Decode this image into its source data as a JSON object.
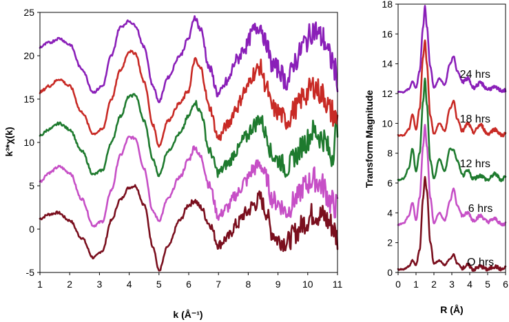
{
  "chart_data": [
    {
      "type": "line",
      "xlabel": "k (Å⁻¹)",
      "ylabel": "k³*χ(k)",
      "xlim": [
        1,
        11
      ],
      "ylim": [
        -5,
        25
      ],
      "xticks": [
        "1",
        "2",
        "3",
        "4",
        "5",
        "6",
        "7",
        "8",
        "9",
        "10",
        "11"
      ],
      "yticks": [
        "-5",
        "0",
        "5",
        "10",
        "15",
        "20",
        "25"
      ],
      "grid": false,
      "series": [
        {
          "color": "#7a0f1e",
          "x": [
            1,
            1.3,
            1.6,
            2.0,
            2.4,
            2.8,
            3.1,
            3.4,
            3.7,
            4.0,
            4.2,
            4.5,
            4.8,
            5.0,
            5.3,
            5.7,
            6.0,
            6.2,
            6.4,
            6.7,
            7.0,
            7.3,
            7.6,
            7.9,
            8.2,
            8.4,
            8.6,
            8.8,
            9.0,
            9.3,
            9.6,
            9.9,
            10.2,
            10.5,
            10.8,
            11
          ],
          "y": [
            1.2,
            1.7,
            1.9,
            1.0,
            -1.0,
            -3.3,
            -2.5,
            1.0,
            3.4,
            4.8,
            5.0,
            2.8,
            -2.0,
            -4.8,
            -2.0,
            1.0,
            2.8,
            3.3,
            2.5,
            0.6,
            -1.8,
            -1.0,
            0.5,
            1.8,
            2.8,
            3.6,
            2.0,
            -0.4,
            -1.2,
            -1.5,
            -0.4,
            0.8,
            1.8,
            1.5,
            0.5,
            -1.0
          ]
        },
        {
          "color": "#c64fc6",
          "x": [
            1,
            1.3,
            1.65,
            2.0,
            2.4,
            2.8,
            3.1,
            3.4,
            3.7,
            4.0,
            4.2,
            4.5,
            4.8,
            5.0,
            5.3,
            5.7,
            6.0,
            6.2,
            6.4,
            6.7,
            7.0,
            7.3,
            7.6,
            7.9,
            8.2,
            8.4,
            8.6,
            8.8,
            9.0,
            9.3,
            9.6,
            9.9,
            10.2,
            10.5,
            10.8,
            11
          ],
          "y": [
            5.5,
            6.5,
            7.2,
            6.5,
            3.5,
            0.4,
            0.9,
            4.5,
            8.5,
            10.6,
            10.5,
            7.0,
            2.0,
            1.0,
            3.5,
            6.0,
            8.0,
            9.5,
            8.3,
            5.0,
            1.5,
            2.5,
            4.0,
            5.5,
            7.0,
            7.5,
            6.0,
            3.5,
            3.0,
            2.0,
            3.5,
            5.0,
            5.8,
            5.0,
            3.0,
            2.5
          ]
        },
        {
          "color": "#1e7a2e",
          "x": [
            1,
            1.3,
            1.65,
            2.0,
            2.4,
            2.8,
            3.1,
            3.4,
            3.7,
            4.0,
            4.2,
            4.5,
            4.8,
            5.0,
            5.3,
            5.7,
            6.0,
            6.2,
            6.4,
            6.7,
            7.0,
            7.3,
            7.6,
            7.9,
            8.2,
            8.4,
            8.6,
            8.8,
            9.0,
            9.3,
            9.6,
            9.9,
            10.2,
            10.5,
            10.8,
            11
          ],
          "y": [
            10.8,
            11.5,
            12.2,
            11.5,
            9.0,
            6.3,
            6.8,
            10.0,
            13.0,
            15.3,
            15.5,
            12.5,
            8.0,
            6.2,
            9.0,
            11.0,
            13.0,
            14.7,
            13.5,
            9.0,
            6.5,
            7.5,
            9.0,
            10.5,
            12.0,
            12.8,
            11.0,
            8.5,
            8.0,
            7.0,
            8.5,
            10.0,
            11.3,
            10.5,
            8.5,
            12.0
          ]
        },
        {
          "color": "#c82a25",
          "x": [
            1,
            1.3,
            1.65,
            2.0,
            2.4,
            2.8,
            3.1,
            3.4,
            3.7,
            4.0,
            4.2,
            4.5,
            4.8,
            5.0,
            5.3,
            5.7,
            6.0,
            6.2,
            6.4,
            6.7,
            7.0,
            7.3,
            7.6,
            7.9,
            8.2,
            8.4,
            8.6,
            8.8,
            9.0,
            9.3,
            9.6,
            9.9,
            10.2,
            10.5,
            10.8,
            11
          ],
          "y": [
            15.8,
            16.5,
            17.3,
            16.5,
            13.5,
            11.0,
            11.5,
            15.0,
            18.3,
            20.5,
            20.3,
            17.0,
            12.0,
            9.6,
            12.5,
            14.5,
            16.0,
            19.5,
            18.5,
            14.0,
            10.5,
            12.0,
            14.0,
            16.0,
            18.0,
            18.7,
            16.5,
            14.0,
            13.5,
            12.5,
            14.0,
            15.5,
            16.5,
            15.5,
            13.5,
            12.5
          ]
        },
        {
          "color": "#8a1fb8",
          "x": [
            1,
            1.3,
            1.65,
            2.0,
            2.4,
            2.8,
            3.1,
            3.4,
            3.7,
            4.0,
            4.2,
            4.5,
            4.8,
            5.0,
            5.3,
            5.7,
            6.0,
            6.2,
            6.4,
            6.7,
            7.0,
            7.3,
            7.6,
            7.9,
            8.2,
            8.4,
            8.6,
            8.8,
            9.0,
            9.3,
            9.6,
            9.9,
            10.2,
            10.5,
            10.8,
            11
          ],
          "y": [
            21.0,
            21.5,
            22.0,
            21.3,
            18.5,
            15.8,
            16.5,
            20.0,
            23.3,
            24.0,
            23.5,
            21.0,
            16.5,
            14.7,
            17.5,
            20.0,
            22.0,
            24.5,
            23.0,
            18.5,
            15.5,
            17.0,
            19.5,
            21.0,
            23.0,
            23.5,
            21.5,
            19.0,
            18.5,
            17.0,
            19.5,
            21.5,
            23.0,
            22.0,
            19.5,
            17.5
          ]
        }
      ]
    },
    {
      "type": "line",
      "xlabel": "R (Å)",
      "ylabel": "Transform Magnitude",
      "xlim": [
        0,
        6
      ],
      "ylim": [
        0,
        18
      ],
      "xticks": [
        "0",
        "1",
        "2",
        "3",
        "4",
        "5",
        "6"
      ],
      "yticks": [
        "0",
        "2",
        "4",
        "6",
        "8",
        "10",
        "12",
        "14",
        "16",
        "18"
      ],
      "grid": false,
      "series": [
        {
          "name": "O hrs",
          "color": "#7a0f1e",
          "x": [
            0,
            0.3,
            0.6,
            0.8,
            1.0,
            1.2,
            1.4,
            1.5,
            1.6,
            1.8,
            2.0,
            2.3,
            2.6,
            2.9,
            3.1,
            3.3,
            3.6,
            3.9,
            4.2,
            4.6,
            5.0,
            5.4,
            5.8,
            6.0
          ],
          "y": [
            0.2,
            0.2,
            0.4,
            0.8,
            0.5,
            1.5,
            5.0,
            6.4,
            5.5,
            2.0,
            0.6,
            0.8,
            0.5,
            0.9,
            1.2,
            0.6,
            0.3,
            0.5,
            0.2,
            0.4,
            0.2,
            0.4,
            0.2,
            0.3
          ]
        },
        {
          "name": "6 hrs",
          "color": "#c64fc6",
          "x": [
            0,
            0.3,
            0.6,
            0.8,
            1.0,
            1.2,
            1.4,
            1.5,
            1.6,
            1.8,
            2.0,
            2.3,
            2.6,
            2.9,
            3.1,
            3.3,
            3.6,
            3.9,
            4.2,
            4.6,
            5.0,
            5.4,
            5.8,
            6.0
          ],
          "y": [
            3.2,
            3.3,
            3.8,
            4.7,
            3.5,
            5.0,
            8.5,
            9.9,
            8.5,
            5.0,
            3.3,
            4.0,
            3.5,
            4.8,
            5.6,
            4.5,
            3.8,
            4.0,
            3.5,
            3.8,
            3.4,
            3.6,
            3.2,
            3.3
          ]
        },
        {
          "name": "12 hrs",
          "color": "#1e7a2e",
          "x": [
            0,
            0.3,
            0.6,
            0.8,
            1.0,
            1.2,
            1.4,
            1.5,
            1.6,
            1.8,
            2.0,
            2.3,
            2.6,
            2.9,
            3.1,
            3.3,
            3.6,
            3.9,
            4.2,
            4.6,
            5.0,
            5.4,
            5.8,
            6.0
          ],
          "y": [
            6.2,
            6.3,
            7.0,
            8.3,
            6.8,
            8.0,
            11.5,
            13.0,
            11.3,
            7.5,
            6.3,
            7.6,
            6.8,
            8.3,
            8.2,
            7.5,
            6.5,
            6.8,
            6.3,
            6.5,
            6.2,
            6.6,
            6.2,
            6.5
          ]
        },
        {
          "name": "18 hrs",
          "color": "#c82a25",
          "x": [
            0,
            0.3,
            0.6,
            0.8,
            1.0,
            1.2,
            1.4,
            1.5,
            1.6,
            1.8,
            2.0,
            2.3,
            2.6,
            2.9,
            3.1,
            3.3,
            3.6,
            3.9,
            4.2,
            4.6,
            5.0,
            5.4,
            5.8,
            6.0
          ],
          "y": [
            9.2,
            9.2,
            9.6,
            10.6,
            9.6,
            11.0,
            14.5,
            15.6,
            14.0,
            10.5,
            9.3,
            10.0,
            9.5,
            11.0,
            11.5,
            10.3,
            9.5,
            10.0,
            9.4,
            9.9,
            9.3,
            9.6,
            9.2,
            9.3
          ]
        },
        {
          "name": "24 hrs",
          "color": "#8a1fb8",
          "x": [
            0,
            0.3,
            0.6,
            0.8,
            1.0,
            1.2,
            1.4,
            1.5,
            1.6,
            1.8,
            2.0,
            2.3,
            2.6,
            2.9,
            3.1,
            3.3,
            3.6,
            3.9,
            4.2,
            4.6,
            5.0,
            5.4,
            5.8,
            6.0
          ],
          "y": [
            12.1,
            12.1,
            12.3,
            12.8,
            12.4,
            13.5,
            16.5,
            17.9,
            16.5,
            13.8,
            12.4,
            13.0,
            12.6,
            14.0,
            14.5,
            13.5,
            12.8,
            13.0,
            12.4,
            12.7,
            12.3,
            12.4,
            12.2,
            12.2
          ]
        }
      ]
    }
  ]
}
